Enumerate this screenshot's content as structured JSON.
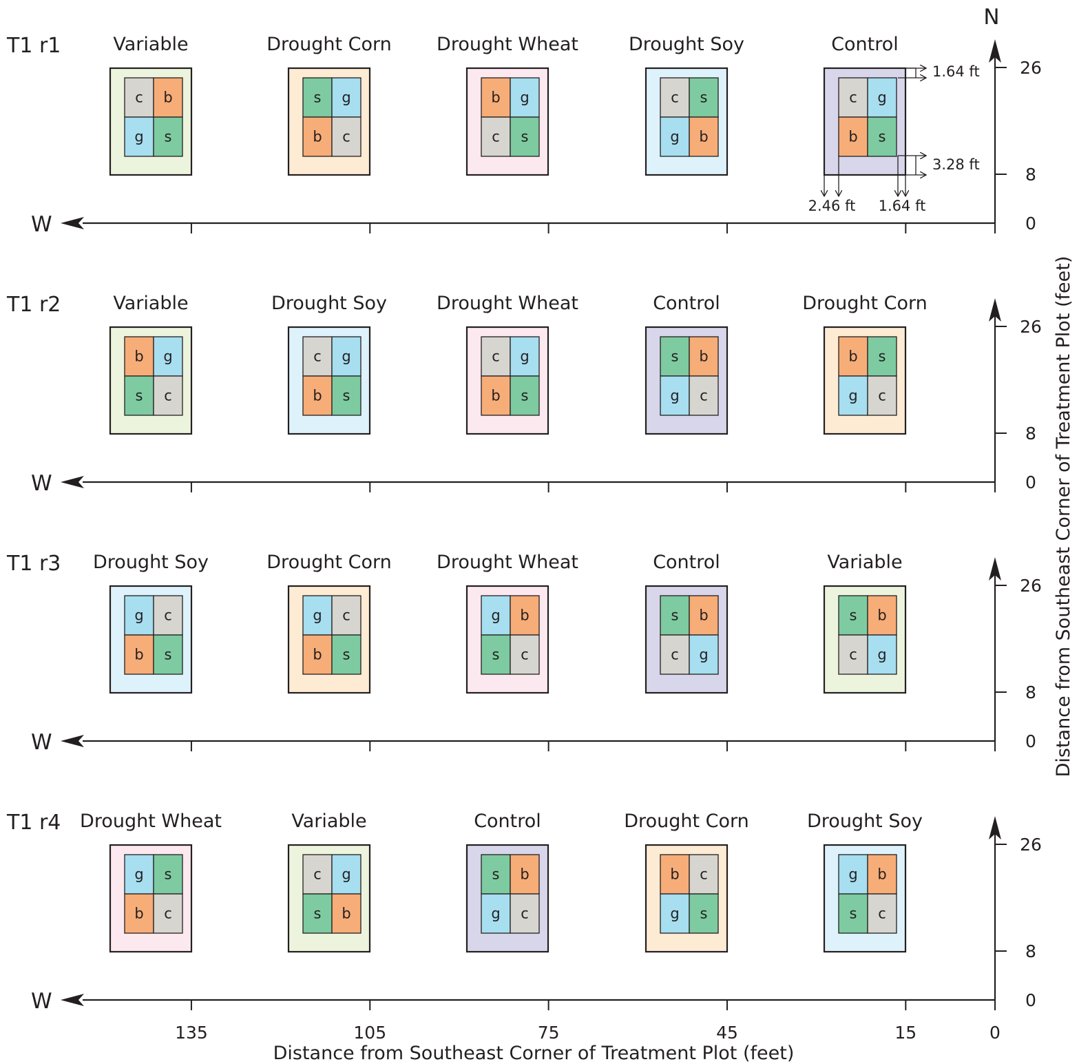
{
  "north_label": "N",
  "west_label": "W",
  "x_axis": {
    "title": "Distance from Southeast Corner of Treatment Plot (feet)",
    "ticks": [
      135,
      105,
      75,
      45,
      15,
      0
    ]
  },
  "y_axis": {
    "title": "Distance from Southeast Corner of Treatment Plot (feet)",
    "ticks": [
      26,
      8,
      0
    ]
  },
  "dimensions": [
    {
      "label": "1.64 ft",
      "key": "top_offset"
    },
    {
      "label": "3.28 ft",
      "key": "bottom_offset"
    },
    {
      "label": "2.46 ft",
      "key": "left_offset"
    },
    {
      "label": "1.64 ft",
      "key": "right_offset"
    }
  ],
  "colors": {
    "plot_fill": {
      "Variable": "#ecf4dd",
      "Drought Corn": "#fdebd4",
      "Drought Wheat": "#fce8ef",
      "Drought Soy": "#def2fb",
      "Control": "#d8d6ea"
    },
    "cell_fill": {
      "c": "#d6d5cf",
      "b": "#f7ad78",
      "g": "#a7def0",
      "s": "#7ecba1"
    },
    "line": "#231f20"
  },
  "rows": [
    {
      "label": "T1 r1",
      "plots": [
        {
          "title": "Variable",
          "cells": [
            "c",
            "b",
            "g",
            "s"
          ]
        },
        {
          "title": "Drought Corn",
          "cells": [
            "s",
            "g",
            "b",
            "c"
          ]
        },
        {
          "title": "Drought Wheat",
          "cells": [
            "b",
            "g",
            "c",
            "s"
          ]
        },
        {
          "title": "Drought Soy",
          "cells": [
            "c",
            "s",
            "g",
            "b"
          ]
        },
        {
          "title": "Control",
          "cells": [
            "c",
            "g",
            "b",
            "s"
          ]
        }
      ]
    },
    {
      "label": "T1 r2",
      "plots": [
        {
          "title": "Variable",
          "cells": [
            "b",
            "g",
            "s",
            "c"
          ]
        },
        {
          "title": "Drought Soy",
          "cells": [
            "c",
            "g",
            "b",
            "s"
          ]
        },
        {
          "title": "Drought Wheat",
          "cells": [
            "c",
            "g",
            "b",
            "s"
          ]
        },
        {
          "title": "Control",
          "cells": [
            "s",
            "b",
            "g",
            "c"
          ]
        },
        {
          "title": "Drought Corn",
          "cells": [
            "b",
            "s",
            "g",
            "c"
          ]
        }
      ]
    },
    {
      "label": "T1 r3",
      "plots": [
        {
          "title": "Drought Soy",
          "cells": [
            "g",
            "c",
            "b",
            "s"
          ]
        },
        {
          "title": "Drought Corn",
          "cells": [
            "g",
            "c",
            "b",
            "s"
          ]
        },
        {
          "title": "Drought Wheat",
          "cells": [
            "g",
            "b",
            "s",
            "c"
          ]
        },
        {
          "title": "Control",
          "cells": [
            "s",
            "b",
            "c",
            "g"
          ]
        },
        {
          "title": "Variable",
          "cells": [
            "s",
            "b",
            "c",
            "g"
          ]
        }
      ]
    },
    {
      "label": "T1 r4",
      "plots": [
        {
          "title": "Drought Wheat",
          "cells": [
            "g",
            "s",
            "b",
            "c"
          ]
        },
        {
          "title": "Variable",
          "cells": [
            "c",
            "g",
            "s",
            "b"
          ]
        },
        {
          "title": "Control",
          "cells": [
            "s",
            "b",
            "g",
            "c"
          ]
        },
        {
          "title": "Drought Corn",
          "cells": [
            "b",
            "c",
            "g",
            "s"
          ]
        },
        {
          "title": "Drought Soy",
          "cells": [
            "g",
            "b",
            "s",
            "c"
          ]
        }
      ]
    }
  ]
}
